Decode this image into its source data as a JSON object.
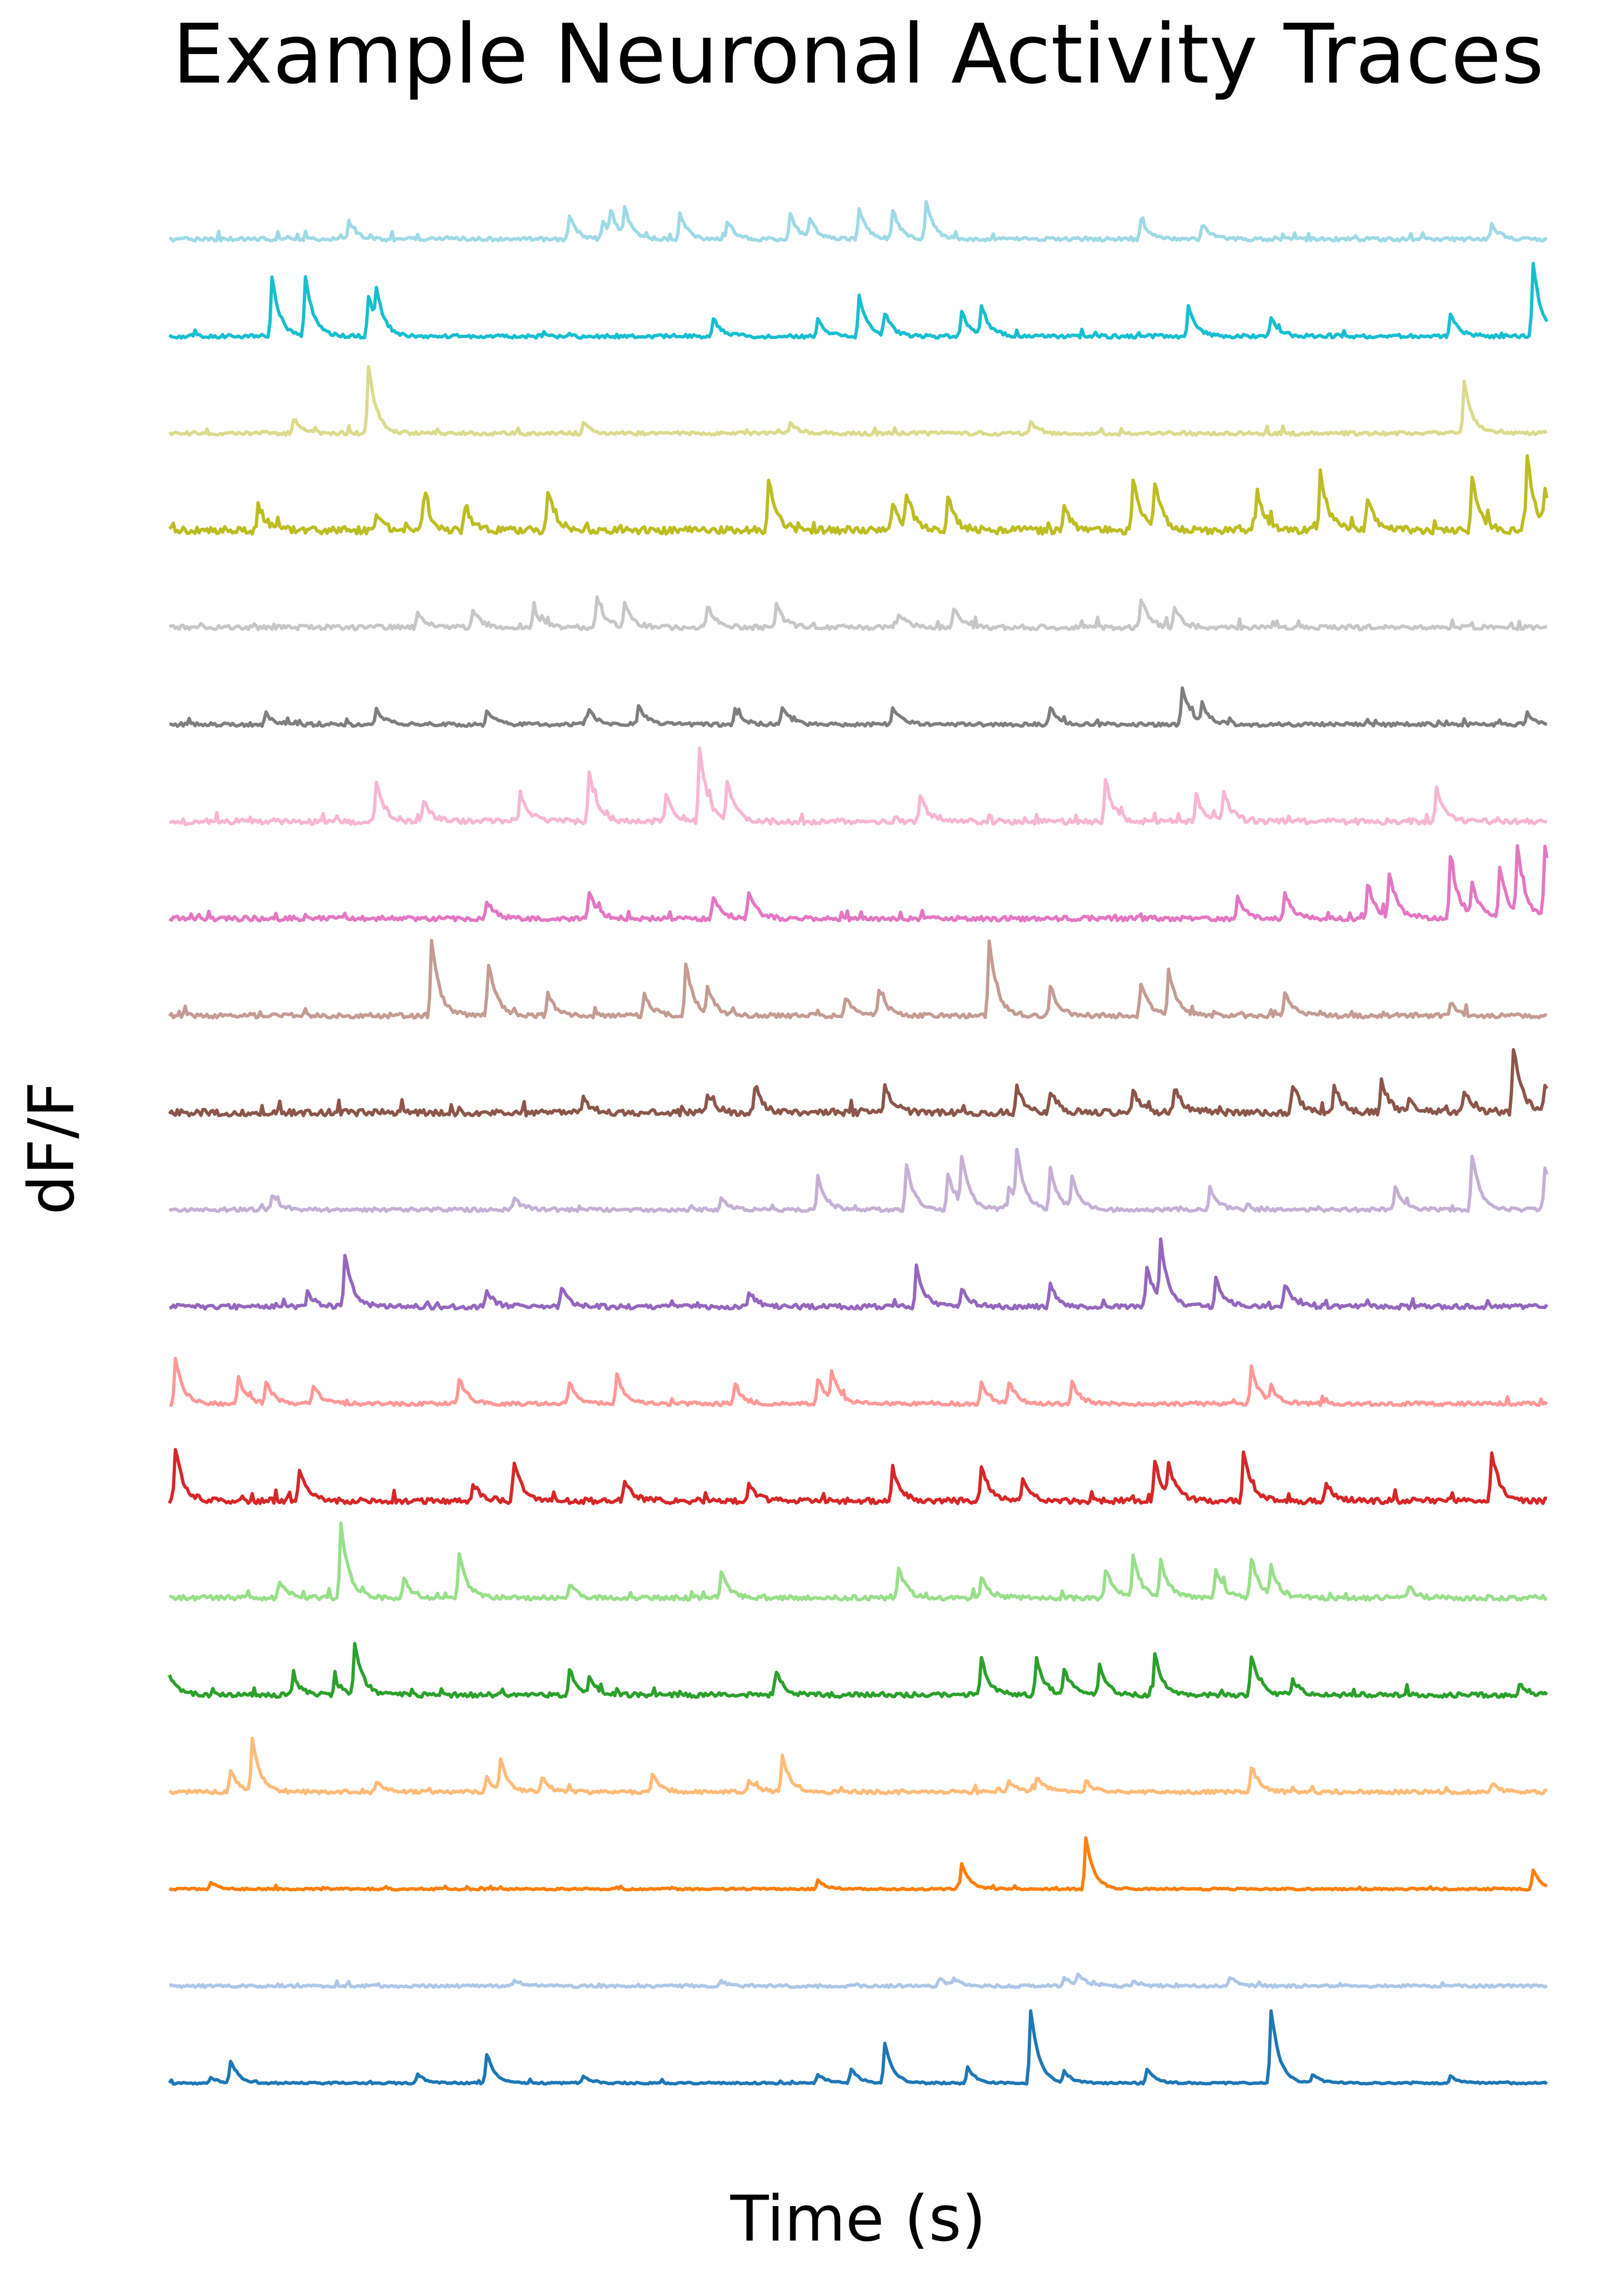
{
  "chart_data": {
    "type": "line",
    "title": "Example Neuronal Activity Traces",
    "xlabel": "Time (s)",
    "ylabel": "dF/F",
    "grid": false,
    "axes_visible": false,
    "layout": "vertically offset stacked traces",
    "series": [
      {
        "color": "#1f77b4",
        "baseline_noise": 0.02,
        "events": [
          [
            0.03,
            0.08
          ],
          [
            0.045,
            0.3
          ],
          [
            0.18,
            0.12
          ],
          [
            0.23,
            0.4
          ],
          [
            0.3,
            0.1
          ],
          [
            0.47,
            0.12
          ],
          [
            0.495,
            0.2
          ],
          [
            0.52,
            0.55
          ],
          [
            0.58,
            0.22
          ],
          [
            0.625,
            1.0
          ],
          [
            0.65,
            0.15
          ],
          [
            0.71,
            0.2
          ],
          [
            0.8,
            1.0
          ],
          [
            0.83,
            0.12
          ],
          [
            0.93,
            0.1
          ]
        ]
      },
      {
        "color": "#aec7e8",
        "baseline_noise": 0.03,
        "events": [
          [
            0.25,
            0.08
          ],
          [
            0.4,
            0.06
          ],
          [
            0.56,
            0.1
          ],
          [
            0.57,
            0.08
          ],
          [
            0.65,
            0.12
          ],
          [
            0.66,
            0.15
          ],
          [
            0.7,
            0.08
          ],
          [
            0.77,
            0.1
          ]
        ]
      },
      {
        "color": "#ff7f0e",
        "baseline_noise": 0.02,
        "events": [
          [
            0.03,
            0.08
          ],
          [
            0.47,
            0.12
          ],
          [
            0.575,
            0.35
          ],
          [
            0.665,
            0.7
          ],
          [
            0.99,
            0.25
          ]
        ]
      },
      {
        "color": "#ffbb78",
        "baseline_noise": 0.04,
        "events": [
          [
            0.045,
            0.3
          ],
          [
            0.06,
            0.7
          ],
          [
            0.15,
            0.15
          ],
          [
            0.23,
            0.2
          ],
          [
            0.24,
            0.4
          ],
          [
            0.27,
            0.18
          ],
          [
            0.35,
            0.25
          ],
          [
            0.42,
            0.18
          ],
          [
            0.445,
            0.5
          ],
          [
            0.61,
            0.15
          ],
          [
            0.63,
            0.2
          ],
          [
            0.665,
            0.15
          ],
          [
            0.785,
            0.35
          ],
          [
            0.96,
            0.12
          ]
        ]
      },
      {
        "color": "#2ca02c",
        "baseline_noise": 0.05,
        "events": [
          [
            0.0,
            0.25
          ],
          [
            0.09,
            0.25
          ],
          [
            0.12,
            0.2
          ],
          [
            0.135,
            0.7
          ],
          [
            0.29,
            0.35
          ],
          [
            0.305,
            0.2
          ],
          [
            0.44,
            0.3
          ],
          [
            0.59,
            0.5
          ],
          [
            0.63,
            0.5
          ],
          [
            0.65,
            0.35
          ],
          [
            0.675,
            0.4
          ],
          [
            0.715,
            0.55
          ],
          [
            0.785,
            0.55
          ],
          [
            0.815,
            0.2
          ],
          [
            0.98,
            0.15
          ]
        ]
      },
      {
        "color": "#98df8a",
        "baseline_noise": 0.05,
        "events": [
          [
            0.08,
            0.2
          ],
          [
            0.125,
            1.0
          ],
          [
            0.17,
            0.25
          ],
          [
            0.21,
            0.6
          ],
          [
            0.29,
            0.2
          ],
          [
            0.4,
            0.35
          ],
          [
            0.53,
            0.4
          ],
          [
            0.59,
            0.3
          ],
          [
            0.68,
            0.4
          ],
          [
            0.7,
            0.55
          ],
          [
            0.72,
            0.5
          ],
          [
            0.76,
            0.4
          ],
          [
            0.785,
            0.55
          ],
          [
            0.8,
            0.4
          ],
          [
            0.9,
            0.15
          ]
        ]
      },
      {
        "color": "#d62728",
        "baseline_noise": 0.06,
        "events": [
          [
            0.005,
            0.7
          ],
          [
            0.095,
            0.4
          ],
          [
            0.22,
            0.25
          ],
          [
            0.25,
            0.55
          ],
          [
            0.33,
            0.3
          ],
          [
            0.42,
            0.25
          ],
          [
            0.525,
            0.45
          ],
          [
            0.59,
            0.5
          ],
          [
            0.62,
            0.3
          ],
          [
            0.715,
            0.55
          ],
          [
            0.725,
            0.4
          ],
          [
            0.78,
            0.65
          ],
          [
            0.84,
            0.25
          ],
          [
            0.96,
            0.65
          ]
        ]
      },
      {
        "color": "#ff9896",
        "baseline_noise": 0.04,
        "events": [
          [
            0.005,
            0.6
          ],
          [
            0.05,
            0.35
          ],
          [
            0.07,
            0.3
          ],
          [
            0.105,
            0.25
          ],
          [
            0.21,
            0.35
          ],
          [
            0.29,
            0.3
          ],
          [
            0.325,
            0.4
          ],
          [
            0.41,
            0.25
          ],
          [
            0.47,
            0.35
          ],
          [
            0.48,
            0.4
          ],
          [
            0.59,
            0.3
          ],
          [
            0.61,
            0.3
          ],
          [
            0.655,
            0.3
          ],
          [
            0.785,
            0.5
          ],
          [
            0.8,
            0.2
          ]
        ]
      },
      {
        "color": "#9467bd",
        "baseline_noise": 0.05,
        "events": [
          [
            0.1,
            0.2
          ],
          [
            0.128,
            0.7
          ],
          [
            0.23,
            0.2
          ],
          [
            0.285,
            0.25
          ],
          [
            0.42,
            0.2
          ],
          [
            0.542,
            0.55
          ],
          [
            0.575,
            0.25
          ],
          [
            0.64,
            0.3
          ],
          [
            0.71,
            0.55
          ],
          [
            0.72,
            0.8
          ],
          [
            0.76,
            0.4
          ],
          [
            0.81,
            0.3
          ]
        ]
      },
      {
        "color": "#c5b0d5",
        "baseline_noise": 0.04,
        "events": [
          [
            0.075,
            0.2
          ],
          [
            0.25,
            0.15
          ],
          [
            0.4,
            0.15
          ],
          [
            0.47,
            0.45
          ],
          [
            0.535,
            0.6
          ],
          [
            0.565,
            0.5
          ],
          [
            0.575,
            0.65
          ],
          [
            0.61,
            0.3
          ],
          [
            0.615,
            0.7
          ],
          [
            0.64,
            0.55
          ],
          [
            0.655,
            0.4
          ],
          [
            0.755,
            0.3
          ],
          [
            0.89,
            0.3
          ],
          [
            0.945,
            0.75
          ],
          [
            0.998,
            0.55
          ]
        ]
      },
      {
        "color": "#8c564b",
        "baseline_noise": 0.07,
        "events": [
          [
            0.3,
            0.2
          ],
          [
            0.39,
            0.25
          ],
          [
            0.425,
            0.35
          ],
          [
            0.52,
            0.4
          ],
          [
            0.615,
            0.35
          ],
          [
            0.64,
            0.3
          ],
          [
            0.7,
            0.3
          ],
          [
            0.73,
            0.35
          ],
          [
            0.815,
            0.4
          ],
          [
            0.845,
            0.35
          ],
          [
            0.88,
            0.45
          ],
          [
            0.9,
            0.2
          ],
          [
            0.94,
            0.3
          ],
          [
            0.975,
            0.9
          ],
          [
            0.998,
            0.35
          ]
        ]
      },
      {
        "color": "#c49c94",
        "baseline_noise": 0.05,
        "events": [
          [
            0.19,
            1.0
          ],
          [
            0.232,
            0.7
          ],
          [
            0.275,
            0.3
          ],
          [
            0.345,
            0.3
          ],
          [
            0.375,
            0.7
          ],
          [
            0.39,
            0.35
          ],
          [
            0.49,
            0.25
          ],
          [
            0.515,
            0.35
          ],
          [
            0.595,
            1.0
          ],
          [
            0.64,
            0.4
          ],
          [
            0.705,
            0.45
          ],
          [
            0.725,
            0.6
          ],
          [
            0.81,
            0.3
          ],
          [
            0.93,
            0.15
          ]
        ]
      },
      {
        "color": "#e377c2",
        "baseline_noise": 0.05,
        "events": [
          [
            0.23,
            0.25
          ],
          [
            0.305,
            0.35
          ],
          [
            0.395,
            0.3
          ],
          [
            0.42,
            0.35
          ],
          [
            0.775,
            0.3
          ],
          [
            0.81,
            0.35
          ],
          [
            0.87,
            0.45
          ],
          [
            0.885,
            0.6
          ],
          [
            0.93,
            0.85
          ],
          [
            0.945,
            0.45
          ],
          [
            0.965,
            0.7
          ],
          [
            0.978,
            0.9
          ],
          [
            0.998,
            0.95
          ]
        ]
      },
      {
        "color": "#f7b6d2",
        "baseline_noise": 0.06,
        "events": [
          [
            0.15,
            0.55
          ],
          [
            0.185,
            0.3
          ],
          [
            0.255,
            0.4
          ],
          [
            0.305,
            0.7
          ],
          [
            0.36,
            0.4
          ],
          [
            0.385,
            1.0
          ],
          [
            0.405,
            0.5
          ],
          [
            0.545,
            0.35
          ],
          [
            0.68,
            0.55
          ],
          [
            0.745,
            0.35
          ],
          [
            0.765,
            0.4
          ],
          [
            0.92,
            0.45
          ]
        ]
      },
      {
        "color": "#7f7f7f",
        "baseline_noise": 0.04,
        "events": [
          [
            0.07,
            0.15
          ],
          [
            0.15,
            0.2
          ],
          [
            0.23,
            0.18
          ],
          [
            0.305,
            0.2
          ],
          [
            0.34,
            0.25
          ],
          [
            0.41,
            0.2
          ],
          [
            0.445,
            0.25
          ],
          [
            0.525,
            0.25
          ],
          [
            0.64,
            0.25
          ],
          [
            0.735,
            0.5
          ],
          [
            0.75,
            0.25
          ],
          [
            0.985,
            0.15
          ]
        ]
      },
      {
        "color": "#c7c7c7",
        "baseline_noise": 0.05,
        "events": [
          [
            0.18,
            0.2
          ],
          [
            0.22,
            0.25
          ],
          [
            0.265,
            0.25
          ],
          [
            0.31,
            0.4
          ],
          [
            0.33,
            0.3
          ],
          [
            0.39,
            0.3
          ],
          [
            0.44,
            0.3
          ],
          [
            0.53,
            0.2
          ],
          [
            0.57,
            0.25
          ],
          [
            0.705,
            0.4
          ],
          [
            0.73,
            0.25
          ]
        ]
      },
      {
        "color": "#bcbd22",
        "baseline_noise": 0.08,
        "events": [
          [
            0.065,
            0.35
          ],
          [
            0.15,
            0.2
          ],
          [
            0.185,
            0.4
          ],
          [
            0.215,
            0.3
          ],
          [
            0.275,
            0.55
          ],
          [
            0.435,
            0.7
          ],
          [
            0.525,
            0.35
          ],
          [
            0.535,
            0.45
          ],
          [
            0.565,
            0.45
          ],
          [
            0.65,
            0.3
          ],
          [
            0.7,
            0.7
          ],
          [
            0.715,
            0.6
          ],
          [
            0.79,
            0.55
          ],
          [
            0.835,
            0.8
          ],
          [
            0.87,
            0.45
          ],
          [
            0.945,
            0.7
          ],
          [
            0.985,
            1.0
          ],
          [
            0.998,
            0.45
          ]
        ]
      },
      {
        "color": "#dbdb8d",
        "baseline_noise": 0.04,
        "events": [
          [
            0.09,
            0.2
          ],
          [
            0.145,
            0.9
          ],
          [
            0.3,
            0.15
          ],
          [
            0.45,
            0.15
          ],
          [
            0.625,
            0.15
          ],
          [
            0.94,
            0.7
          ]
        ]
      },
      {
        "color": "#17becf",
        "baseline_noise": 0.04,
        "events": [
          [
            0.075,
            0.8
          ],
          [
            0.098,
            0.8
          ],
          [
            0.145,
            0.55
          ],
          [
            0.15,
            0.45
          ],
          [
            0.395,
            0.25
          ],
          [
            0.47,
            0.25
          ],
          [
            0.5,
            0.55
          ],
          [
            0.52,
            0.3
          ],
          [
            0.575,
            0.35
          ],
          [
            0.59,
            0.4
          ],
          [
            0.74,
            0.4
          ],
          [
            0.8,
            0.25
          ],
          [
            0.93,
            0.3
          ],
          [
            0.99,
            1.0
          ]
        ]
      },
      {
        "color": "#9edae5",
        "baseline_noise": 0.04,
        "events": [
          [
            0.13,
            0.25
          ],
          [
            0.29,
            0.3
          ],
          [
            0.315,
            0.25
          ],
          [
            0.32,
            0.3
          ],
          [
            0.33,
            0.35
          ],
          [
            0.37,
            0.35
          ],
          [
            0.405,
            0.25
          ],
          [
            0.45,
            0.35
          ],
          [
            0.465,
            0.25
          ],
          [
            0.5,
            0.4
          ],
          [
            0.525,
            0.4
          ],
          [
            0.55,
            0.5
          ],
          [
            0.705,
            0.25
          ],
          [
            0.75,
            0.2
          ],
          [
            0.96,
            0.2
          ]
        ]
      }
    ]
  }
}
